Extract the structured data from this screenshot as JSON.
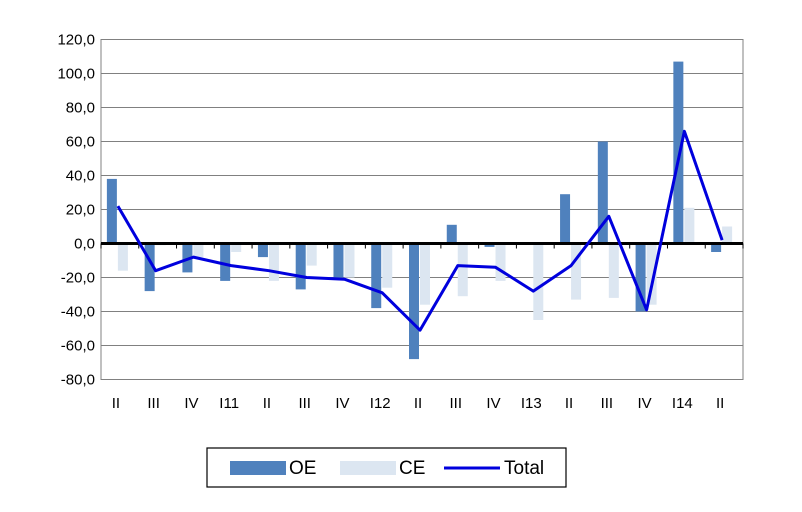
{
  "chart_data": {
    "type": "bar",
    "title": "",
    "xlabel": "",
    "ylabel": "",
    "ylim": [
      -80,
      120
    ],
    "yticks": [
      120,
      100,
      80,
      60,
      40,
      20,
      0,
      -20,
      -40,
      -60,
      -80
    ],
    "ytick_labels": [
      "120,0",
      "100,0",
      "80,0",
      "60,0",
      "40,0",
      "20,0",
      "0,0",
      "-20,0",
      "-40,0",
      "-60,0",
      "-80,0"
    ],
    "grid": true,
    "legend_position": "bottom",
    "categories": [
      "II",
      "III",
      "IV",
      "I11",
      "II",
      "III",
      "IV",
      "I12",
      "II",
      "III",
      "IV",
      "I13",
      "II",
      "III",
      "IV",
      "I14",
      "II"
    ],
    "series": [
      {
        "name": "OE",
        "kind": "bar",
        "color": "#4F81BD",
        "values": [
          38,
          -28,
          -17,
          -22,
          -8,
          -27,
          -20,
          -38,
          -68,
          11,
          -2,
          0,
          29,
          60,
          -40,
          107,
          -5
        ]
      },
      {
        "name": "CE",
        "kind": "bar",
        "color": "#DCE6F1",
        "values": [
          -16,
          -1,
          -8,
          -5,
          -22,
          -13,
          -20,
          -26,
          -36,
          -31,
          -22,
          -45,
          -33,
          -32,
          -36,
          21,
          10
        ]
      },
      {
        "name": "Total",
        "kind": "line",
        "color": "#0000DD",
        "values": [
          22,
          -16,
          -8,
          -13,
          -16,
          -20,
          -21,
          -29,
          -51,
          -13,
          -14,
          -28,
          -13,
          16,
          -39,
          66,
          2
        ]
      }
    ]
  }
}
